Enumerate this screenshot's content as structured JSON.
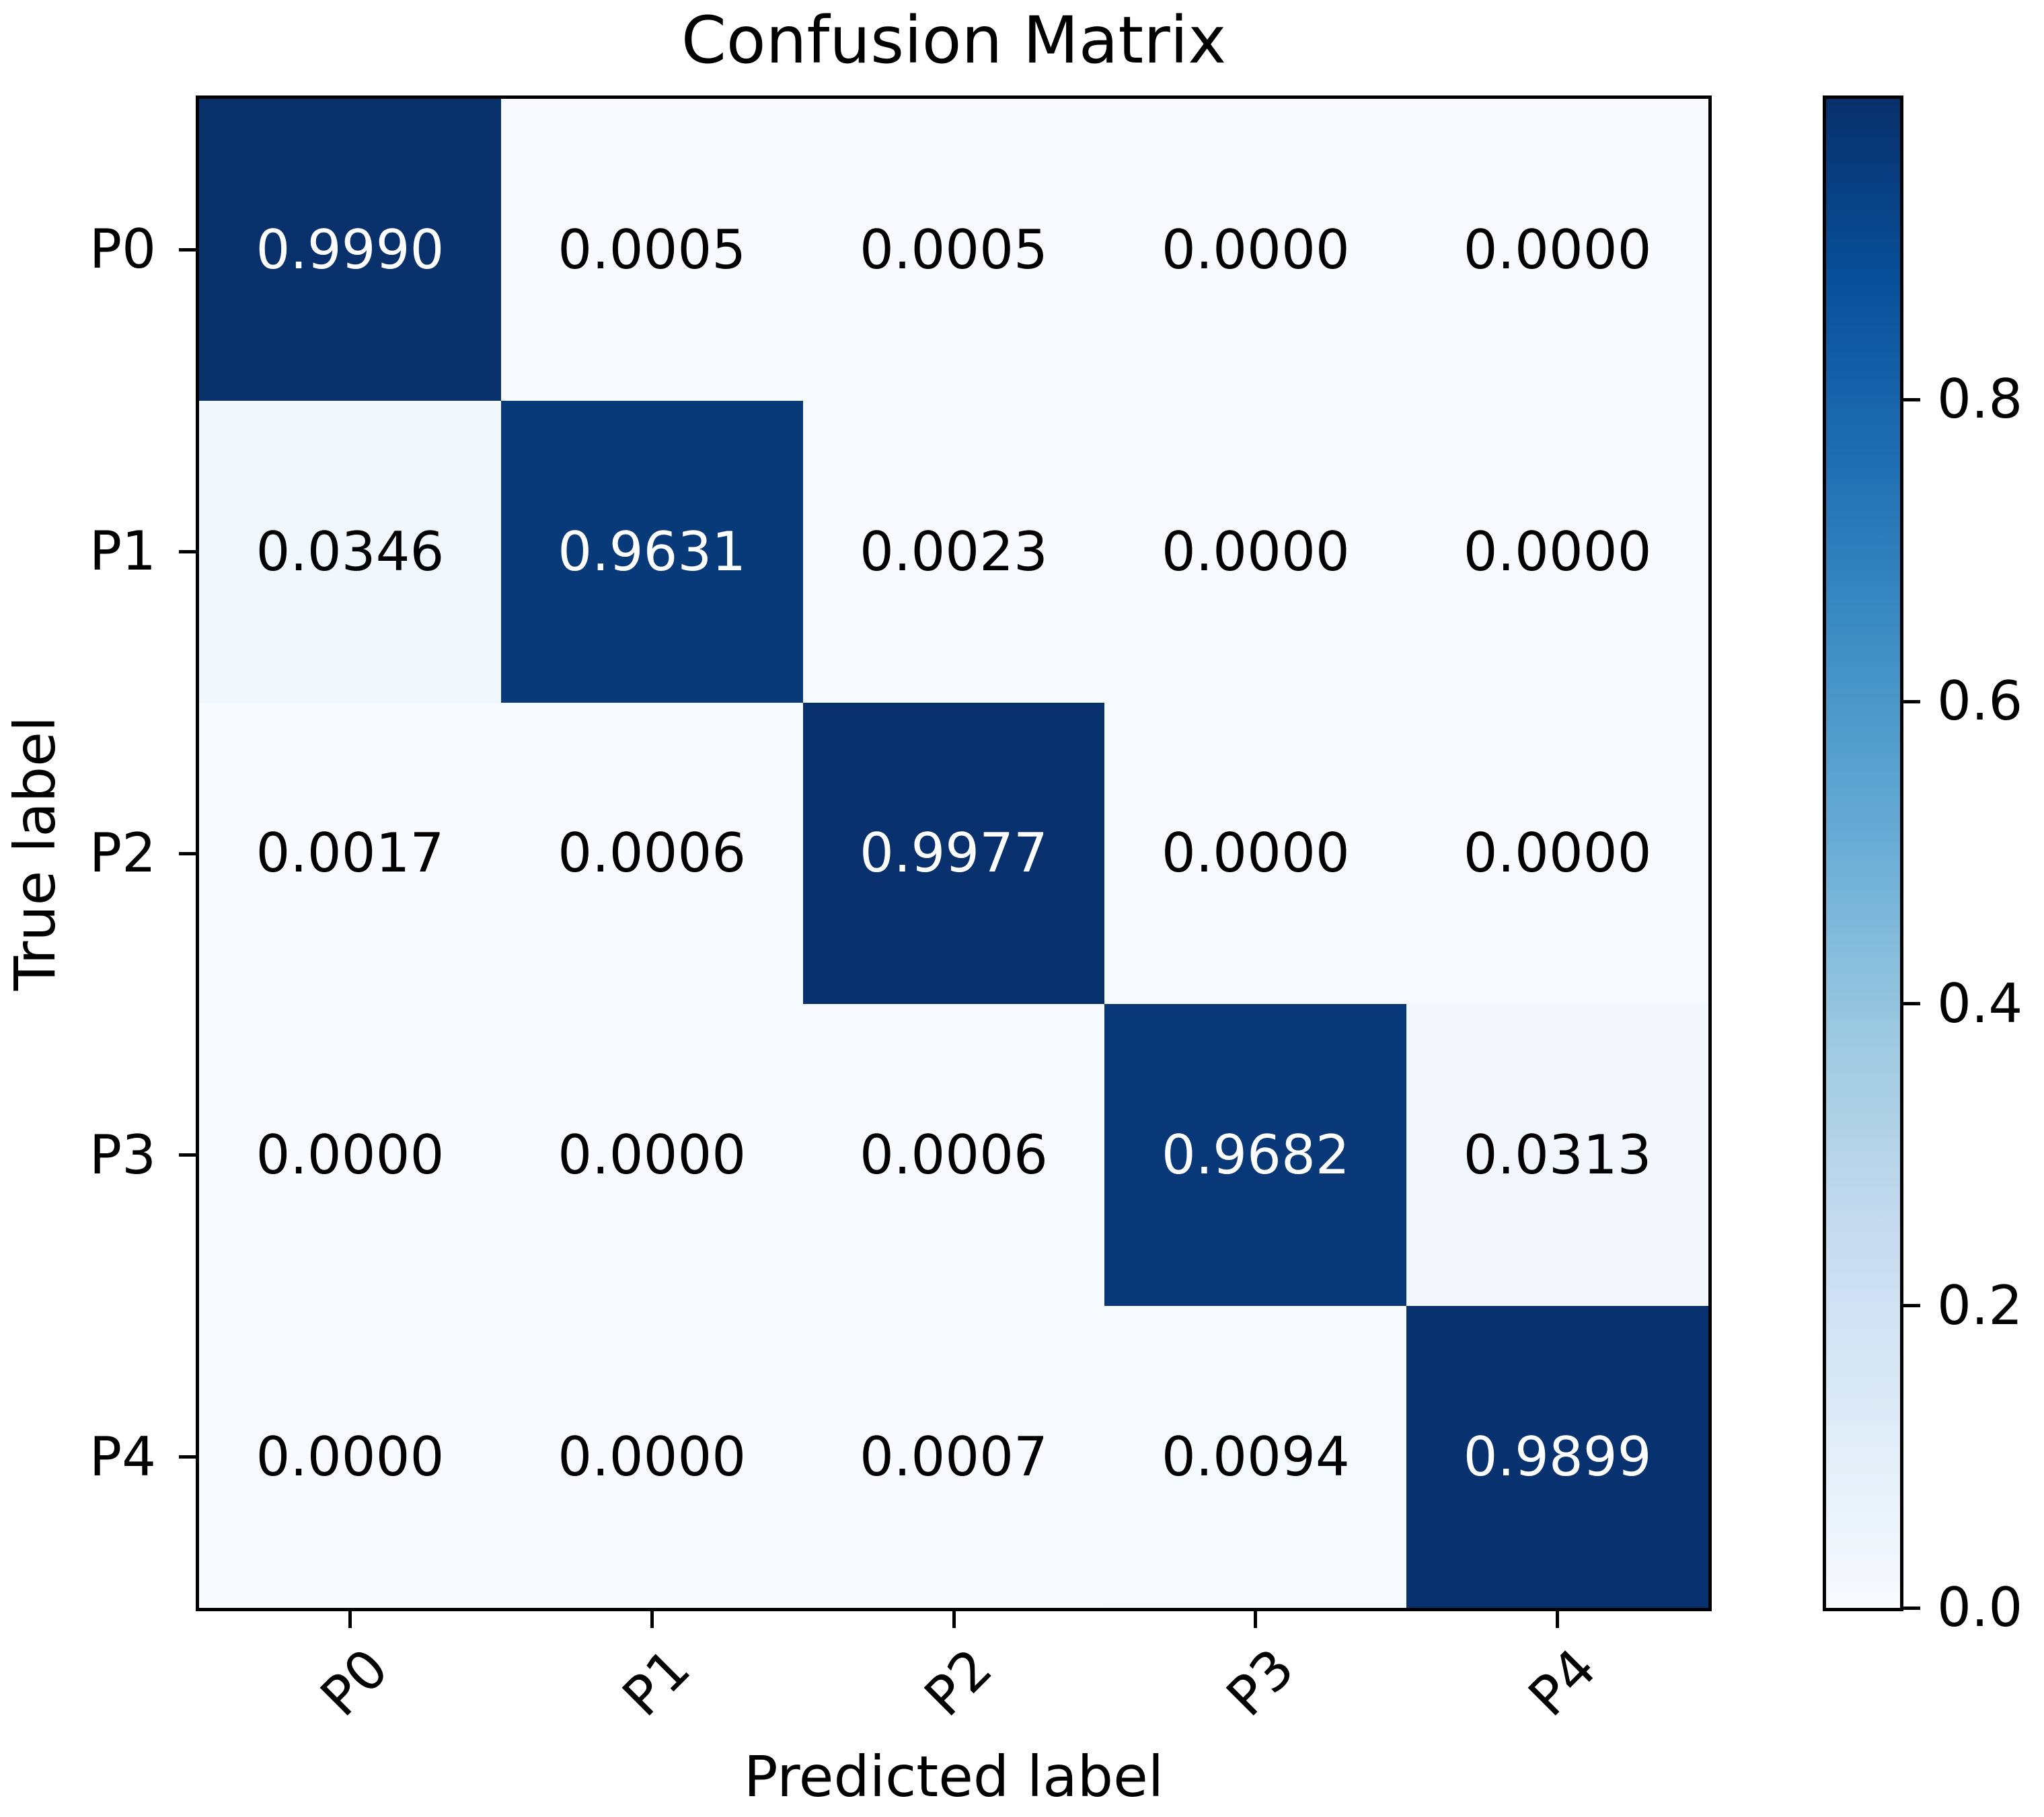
{
  "chart_data": {
    "type": "heatmap",
    "title": "Confusion Matrix",
    "xlabel": "Predicted label",
    "ylabel": "True label",
    "x_tick_labels": [
      "P0",
      "P1",
      "P2",
      "P3",
      "P4"
    ],
    "y_tick_labels": [
      "P0",
      "P1",
      "P2",
      "P3",
      "P4"
    ],
    "values": [
      [
        0.999,
        0.0005,
        0.0005,
        0.0,
        0.0
      ],
      [
        0.0346,
        0.9631,
        0.0023,
        0.0,
        0.0
      ],
      [
        0.0017,
        0.0006,
        0.9977,
        0.0,
        0.0
      ],
      [
        0.0,
        0.0,
        0.0006,
        0.9682,
        0.0313
      ],
      [
        0.0,
        0.0,
        0.0007,
        0.0094,
        0.9899
      ]
    ],
    "cell_labels": [
      [
        "0.9990",
        "0.0005",
        "0.0005",
        "0.0000",
        "0.0000"
      ],
      [
        "0.0346",
        "0.9631",
        "0.0023",
        "0.0000",
        "0.0000"
      ],
      [
        "0.0017",
        "0.0006",
        "0.9977",
        "0.0000",
        "0.0000"
      ],
      [
        "0.0000",
        "0.0000",
        "0.0006",
        "0.9682",
        "0.0313"
      ],
      [
        "0.0000",
        "0.0000",
        "0.0007",
        "0.0094",
        "0.9899"
      ]
    ],
    "colormap": "Blues",
    "colormap_stops": [
      "#f7fbff",
      "#deebf7",
      "#c6dbef",
      "#9ecae1",
      "#6baed6",
      "#4292c6",
      "#2171b5",
      "#08519c",
      "#08306b"
    ],
    "vmin": 0.0,
    "vmax": 0.999,
    "colorbar_tick_labels": [
      "0.8",
      "0.6",
      "0.4",
      "0.2",
      "0.0"
    ],
    "colorbar_tick_values": [
      0.8,
      0.6,
      0.4,
      0.2,
      0.0
    ],
    "colors": {
      "background": "#ffffff",
      "text": "#000000",
      "cell_text_on_dark": "#ffffff",
      "cell_text_on_light": "#000000",
      "max_cell": "#08306b",
      "min_cell": "#f7fbff",
      "axis_line": "#000000"
    },
    "grid": false,
    "legend": null
  }
}
